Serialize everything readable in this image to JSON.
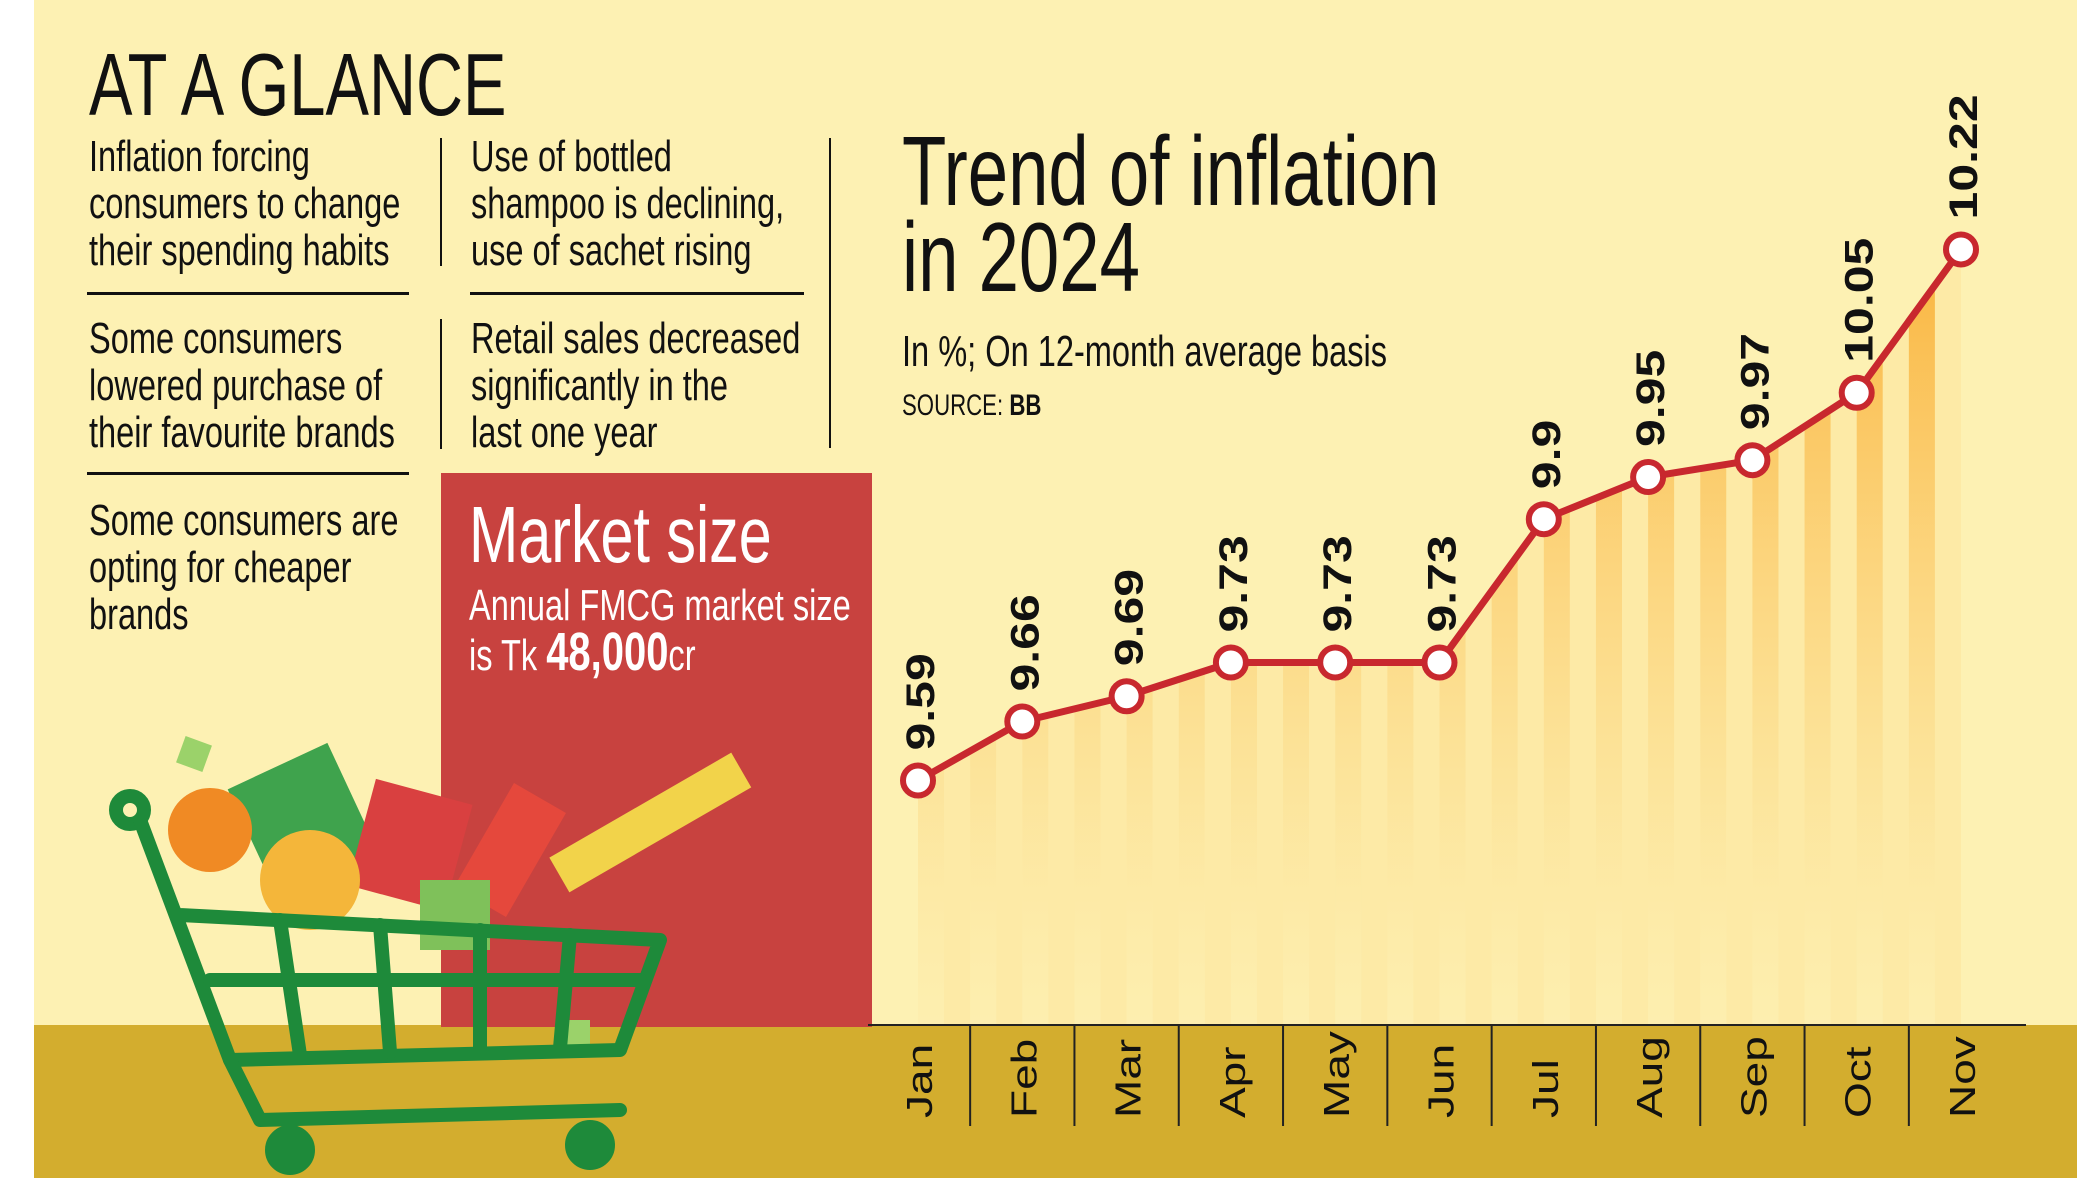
{
  "glance": {
    "title": "AT A GLANCE",
    "bullets": [
      {
        "lines": [
          "Inflation forcing",
          "consumers to change",
          "their spending habits"
        ]
      },
      {
        "lines": [
          "Use of bottled",
          "shampoo is declining,",
          "use of sachet rising"
        ]
      },
      {
        "lines": [
          "Some consumers",
          "lowered purchase of",
          "their favourite brands"
        ]
      },
      {
        "lines": [
          "Retail sales decreased",
          "significantly in the",
          "last one year"
        ]
      },
      {
        "lines": [
          "Some consumers are",
          "opting for cheaper",
          "brands"
        ]
      }
    ]
  },
  "market": {
    "title": "Market size",
    "line1": "Annual FMCG market size",
    "prefix": "is Tk ",
    "value": "48,000",
    "suffix": "cr",
    "color": "#c8423f"
  },
  "colors": {
    "background": "#fdf1b3",
    "band": "#d3ad2e",
    "line": "#c8282e",
    "fill": "#f9a826"
  },
  "illustration": "shopping-cart-with-groceries",
  "chart_data": {
    "type": "line",
    "title_lines": [
      "Trend of inflation",
      "in 2024"
    ],
    "subtitle": "In %; On 12-month average basis",
    "source_label": "SOURCE: ",
    "source": "BB",
    "categories": [
      "Jan",
      "Feb",
      "Mar",
      "Apr",
      "May",
      "Jun",
      "Jul",
      "Aug",
      "Sep",
      "Oct",
      "Nov"
    ],
    "values": [
      9.59,
      9.66,
      9.69,
      9.73,
      9.73,
      9.73,
      9.9,
      9.95,
      9.97,
      10.05,
      10.22
    ],
    "labels": [
      "9.59",
      "9.66",
      "9.69",
      "9.73",
      "9.73",
      "9.73",
      "9.9",
      "9.95",
      "9.97",
      "10.05",
      "10.22"
    ],
    "ylim": [
      9.3,
      10.3
    ],
    "grid": false,
    "legend": "none"
  }
}
